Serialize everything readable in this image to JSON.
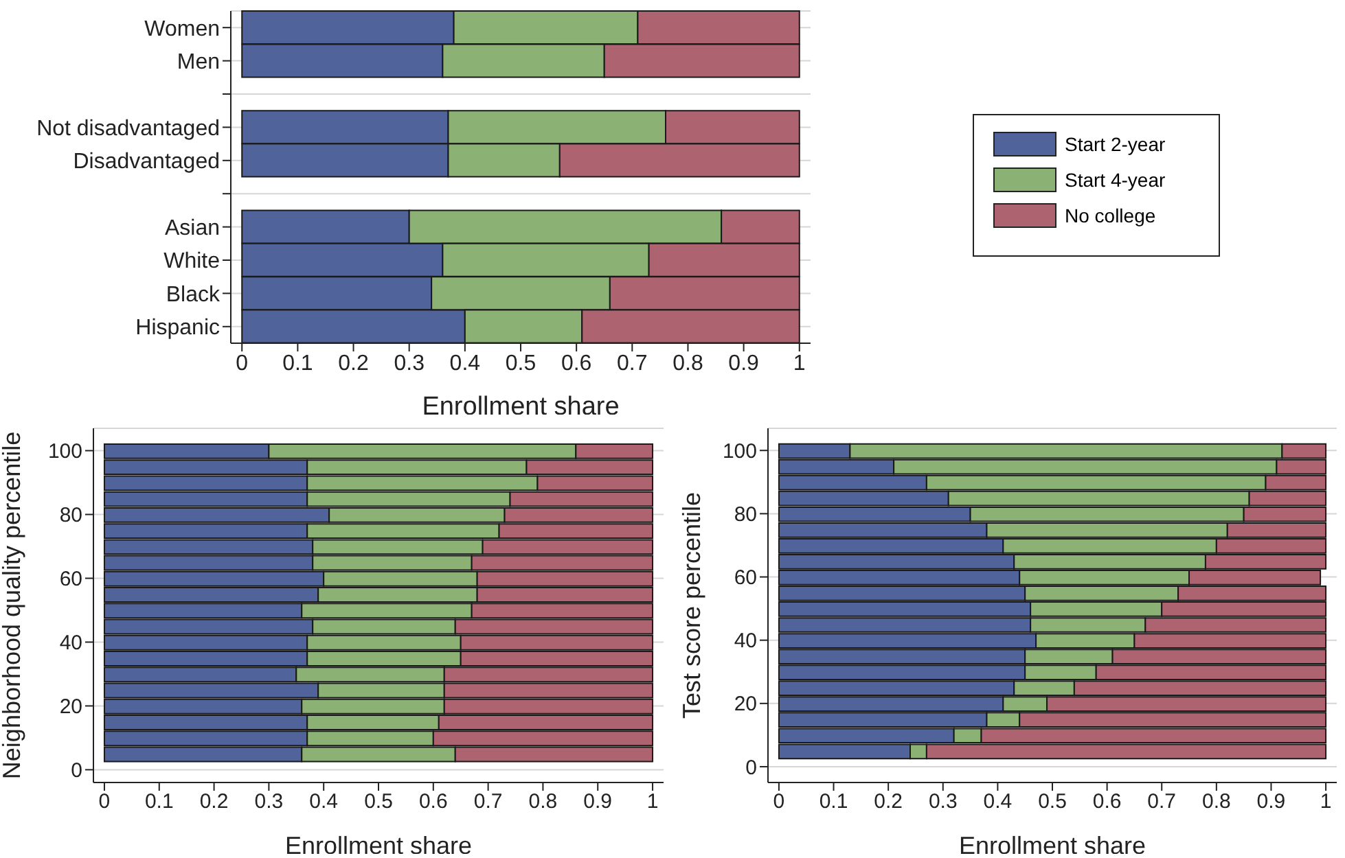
{
  "chart_data": [
    {
      "type": "bar",
      "orientation": "horizontal",
      "stacked": true,
      "xlabel": "Enrollment share",
      "categories": [
        "Women",
        "Men",
        null,
        "Not disadvantaged",
        "Disadvantaged",
        null,
        "Asian",
        "White",
        "Black",
        "Hispanic"
      ],
      "series": [
        {
          "name": "Start 2-year",
          "color": "#50639a",
          "values": [
            0.38,
            0.36,
            null,
            0.37,
            0.37,
            null,
            0.3,
            0.36,
            0.34,
            0.4
          ]
        },
        {
          "name": "Start 4-year",
          "color": "#8bb174",
          "values": [
            0.33,
            0.29,
            null,
            0.39,
            0.2,
            null,
            0.56,
            0.37,
            0.32,
            0.21
          ]
        },
        {
          "name": "No college",
          "color": "#ae6371",
          "values": [
            0.29,
            0.35,
            null,
            0.24,
            0.43,
            null,
            0.14,
            0.27,
            0.34,
            0.39
          ]
        }
      ],
      "xlim": [
        -0.02,
        1.02
      ],
      "xticks": [
        0,
        0.1,
        0.2,
        0.3,
        0.4,
        0.5,
        0.6,
        0.7,
        0.8,
        0.9,
        1
      ],
      "grid": "y",
      "legend": "right"
    },
    {
      "type": "bar",
      "orientation": "horizontal",
      "stacked": true,
      "xlabel": "Enrollment share",
      "ylabel": "Neighborhood quality percentile",
      "x": [
        5,
        10,
        15,
        20,
        25,
        30,
        35,
        40,
        45,
        50,
        55,
        60,
        65,
        70,
        75,
        80,
        85,
        90,
        95,
        100
      ],
      "series": [
        {
          "color": "#50639a",
          "values": [
            0.36,
            0.37,
            0.37,
            0.36,
            0.39,
            0.35,
            0.37,
            0.37,
            0.38,
            0.36,
            0.39,
            0.4,
            0.38,
            0.38,
            0.37,
            0.41,
            0.37,
            0.37,
            0.37,
            0.3
          ]
        },
        {
          "color": "#8bb174",
          "values": [
            0.28,
            0.23,
            0.24,
            0.26,
            0.23,
            0.27,
            0.28,
            0.28,
            0.26,
            0.31,
            0.29,
            0.28,
            0.29,
            0.31,
            0.35,
            0.32,
            0.37,
            0.42,
            0.4,
            0.56
          ]
        },
        {
          "color": "#ae6371",
          "values": [
            0.36,
            0.4,
            0.39,
            0.38,
            0.38,
            0.38,
            0.35,
            0.35,
            0.36,
            0.33,
            0.32,
            0.32,
            0.33,
            0.31,
            0.28,
            0.27,
            0.26,
            0.21,
            0.23,
            0.14
          ]
        }
      ],
      "xlim": [
        -0.02,
        1.02
      ],
      "xticks": [
        0,
        0.1,
        0.2,
        0.3,
        0.4,
        0.5,
        0.6,
        0.7,
        0.8,
        0.9,
        1
      ],
      "ylim": [
        -4,
        107
      ],
      "yticks": [
        0,
        20,
        40,
        60,
        80,
        100
      ],
      "grid": "y"
    },
    {
      "type": "bar",
      "orientation": "horizontal",
      "stacked": true,
      "xlabel": "Enrollment share",
      "ylabel": "Test score percentile",
      "x": [
        5,
        10,
        15,
        20,
        25,
        30,
        35,
        40,
        45,
        50,
        55,
        60,
        65,
        70,
        75,
        80,
        85,
        90,
        95,
        100
      ],
      "series": [
        {
          "color": "#50639a",
          "values": [
            0.24,
            0.32,
            0.38,
            0.41,
            0.43,
            0.45,
            0.45,
            0.47,
            0.46,
            0.46,
            0.45,
            0.44,
            0.43,
            0.41,
            0.38,
            0.35,
            0.31,
            0.27,
            0.21,
            0.13
          ]
        },
        {
          "color": "#8bb174",
          "values": [
            0.03,
            0.05,
            0.06,
            0.08,
            0.11,
            0.13,
            0.16,
            0.18,
            0.21,
            0.24,
            0.28,
            0.31,
            0.35,
            0.39,
            0.44,
            0.5,
            0.55,
            0.62,
            0.7,
            0.79
          ]
        },
        {
          "color": "#ae6371",
          "values": [
            0.73,
            0.63,
            0.56,
            0.51,
            0.46,
            0.42,
            0.39,
            0.35,
            0.33,
            0.3,
            0.27,
            0.24,
            0.22,
            0.2,
            0.18,
            0.15,
            0.14,
            0.11,
            0.09,
            0.08
          ]
        }
      ],
      "xlim": [
        -0.02,
        1.02
      ],
      "xticks": [
        0,
        0.1,
        0.2,
        0.3,
        0.4,
        0.5,
        0.6,
        0.7,
        0.8,
        0.9,
        1
      ],
      "ylim": [
        -5,
        107
      ],
      "yticks": [
        0,
        20,
        40,
        60,
        80,
        100
      ],
      "grid": "y"
    }
  ]
}
